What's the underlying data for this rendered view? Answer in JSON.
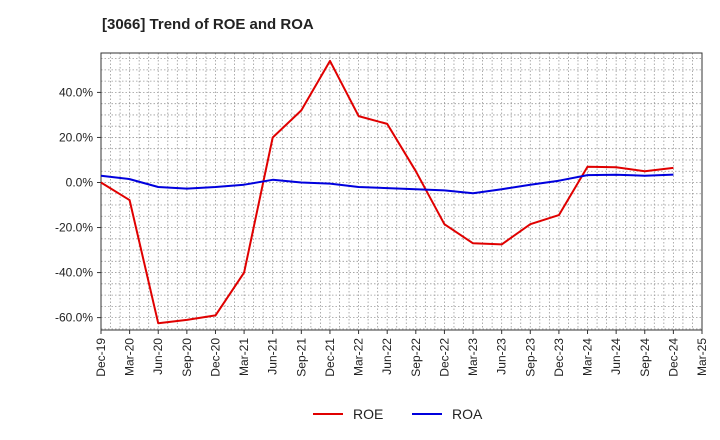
{
  "chart_data": {
    "type": "line",
    "title": "[3066]  Trend of ROE and ROA",
    "xlabel": "",
    "ylabel": "",
    "x_ticks": [
      "Dec-19",
      "Mar-20",
      "Jun-20",
      "Sep-20",
      "Dec-20",
      "Mar-21",
      "Jun-21",
      "Sep-21",
      "Dec-21",
      "Mar-22",
      "Jun-22",
      "Sep-22",
      "Dec-22",
      "Mar-23",
      "Jun-23",
      "Sep-23",
      "Dec-23",
      "Mar-24",
      "Jun-24",
      "Sep-24",
      "Dec-24",
      "Mar-25"
    ],
    "y_ticks": [
      -60,
      -40,
      -20,
      0,
      20,
      40
    ],
    "y_tick_labels": [
      "-60.0%",
      "-40.0%",
      "-20.0%",
      "0.0%",
      "20.0%",
      "40.0%"
    ],
    "ylim": [
      -65.5,
      57.5
    ],
    "grid": true,
    "legend_position": "bottom",
    "series": [
      {
        "name": "ROE",
        "color": "#e00000",
        "values": [
          0.0,
          -7.8,
          -62.5,
          -61.0,
          -59.0,
          -40.0,
          20.0,
          32.0,
          54.0,
          29.5,
          26.0,
          5.0,
          -18.5,
          -27.0,
          -27.5,
          -18.5,
          -14.5,
          7.0,
          6.8,
          5.0,
          6.5,
          null
        ]
      },
      {
        "name": "ROA",
        "color": "#0000dd",
        "values": [
          3.0,
          1.5,
          -2.0,
          -2.7,
          -2.0,
          -1.0,
          1.2,
          0.0,
          -0.5,
          -2.0,
          -2.5,
          -3.0,
          -3.5,
          -4.8,
          -3.0,
          -1.0,
          0.8,
          3.3,
          3.4,
          3.0,
          3.5,
          null
        ]
      }
    ]
  }
}
